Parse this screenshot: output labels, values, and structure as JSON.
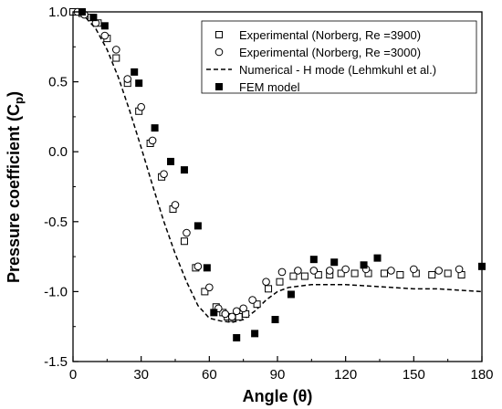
{
  "chart_data": {
    "type": "scatter",
    "xlabel": "Angle (θ)",
    "ylabel_main": "Pressure coefficient (C",
    "ylabel_sub": "p",
    "ylabel_close": ")",
    "xlim": [
      0,
      180
    ],
    "ylim": [
      -1.5,
      1.0
    ],
    "x_ticks": [
      0,
      30,
      60,
      90,
      120,
      150,
      180
    ],
    "y_ticks": [
      1.0,
      0.5,
      0.0,
      -0.5,
      -1.0,
      -1.5
    ],
    "x_tick_labels": [
      "0",
      "30",
      "60",
      "90",
      "120",
      "150",
      "180"
    ],
    "y_tick_labels": [
      "1.0",
      "0.5",
      "0.0",
      "-0.5",
      "-1.0",
      "-1.5"
    ],
    "grid": false,
    "legend_position": "top-right",
    "series": [
      {
        "name": "Experimental (Norberg, Re =3900)",
        "marker": "open-square",
        "color": "#000000",
        "x": [
          0,
          4,
          8,
          11,
          15,
          19,
          24,
          29,
          34,
          39,
          44,
          49,
          54,
          58,
          63,
          66,
          68,
          70,
          73,
          76,
          81,
          86,
          91,
          97,
          102,
          108,
          113,
          118,
          124,
          130,
          137,
          144,
          151,
          158,
          165,
          171
        ],
        "y": [
          1.0,
          0.99,
          0.96,
          0.92,
          0.81,
          0.67,
          0.49,
          0.29,
          0.06,
          -0.18,
          -0.41,
          -0.64,
          -0.83,
          -1.0,
          -1.11,
          -1.15,
          -1.18,
          -1.19,
          -1.18,
          -1.16,
          -1.09,
          -0.98,
          -0.93,
          -0.89,
          -0.89,
          -0.88,
          -0.88,
          -0.87,
          -0.87,
          -0.87,
          -0.87,
          -0.88,
          -0.87,
          -0.88,
          -0.87,
          -0.88
        ]
      },
      {
        "name": "Experimental (Norberg, Re =3000)",
        "marker": "open-circle",
        "color": "#000000",
        "x": [
          2,
          5,
          10,
          14,
          19,
          24,
          30,
          35,
          40,
          45,
          50,
          55,
          60,
          64,
          67,
          70,
          72,
          75,
          79,
          85,
          92,
          99,
          106,
          113,
          120,
          129,
          140,
          150,
          161,
          170
        ],
        "y": [
          1.0,
          0.98,
          0.92,
          0.83,
          0.73,
          0.52,
          0.32,
          0.08,
          -0.16,
          -0.38,
          -0.58,
          -0.82,
          -0.97,
          -1.12,
          -1.16,
          -1.18,
          -1.14,
          -1.12,
          -1.06,
          -0.93,
          -0.86,
          -0.85,
          -0.85,
          -0.85,
          -0.84,
          -0.84,
          -0.85,
          -0.84,
          -0.85,
          -0.84
        ]
      },
      {
        "name": "Numerical - H mode (Lehmkuhl et al.)",
        "marker": "dashed-line",
        "color": "#000000",
        "x": [
          0,
          5,
          10,
          15,
          20,
          25,
          30,
          35,
          40,
          45,
          50,
          55,
          60,
          65,
          70,
          75,
          80,
          85,
          90,
          95,
          100,
          105,
          110,
          115,
          120,
          130,
          140,
          150,
          160,
          170,
          180
        ],
        "y": [
          1.0,
          0.97,
          0.88,
          0.73,
          0.53,
          0.29,
          0.03,
          -0.24,
          -0.5,
          -0.73,
          -0.93,
          -1.1,
          -1.19,
          -1.21,
          -1.22,
          -1.2,
          -1.14,
          -1.06,
          -1.0,
          -0.97,
          -0.96,
          -0.95,
          -0.95,
          -0.95,
          -0.95,
          -0.96,
          -0.97,
          -0.98,
          -0.98,
          -0.99,
          -1.0
        ]
      },
      {
        "name": "FEM model",
        "marker": "filled-square",
        "color": "#000000",
        "x": [
          4,
          9,
          14,
          27,
          29,
          36,
          43,
          49,
          55,
          59,
          62,
          72,
          80,
          89,
          96,
          106,
          115,
          128,
          134,
          180
        ],
        "y": [
          1.0,
          0.96,
          0.9,
          0.57,
          0.49,
          0.17,
          -0.07,
          -0.13,
          -0.53,
          -0.83,
          -1.15,
          -1.33,
          -1.3,
          -1.2,
          -1.02,
          -0.77,
          -0.79,
          -0.81,
          -0.76,
          -0.82
        ]
      }
    ]
  }
}
